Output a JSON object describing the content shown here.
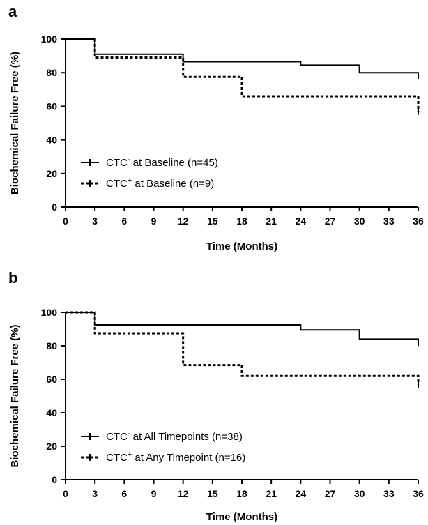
{
  "chart_data": [
    {
      "panel_label": "a",
      "type": "line",
      "step": true,
      "xlabel": "Time (Months)",
      "ylabel": "Biochemical Failure Free (%)",
      "xlim": [
        0,
        36
      ],
      "ylim": [
        0,
        100
      ],
      "xticks": [
        "0",
        "3",
        "6",
        "9",
        "12",
        "15",
        "18",
        "21",
        "24",
        "27",
        "30",
        "33",
        "36"
      ],
      "yticks": [
        "0",
        "20",
        "40",
        "60",
        "80",
        "100"
      ],
      "grid": false,
      "legend_position": "bottom-left",
      "series": [
        {
          "legend": {
            "base": "CTC",
            "sup": "-",
            "rest": " at Baseline (n=45)"
          },
          "style": "solid",
          "color": "#000000",
          "x": [
            0,
            3,
            12,
            24,
            30,
            36
          ],
          "y": [
            100,
            91,
            86.5,
            84.5,
            80,
            78
          ]
        },
        {
          "legend": {
            "base": "CTC",
            "sup": "+",
            "rest": " at Baseline (n=9)"
          },
          "style": "dotted",
          "color": "#000000",
          "x": [
            0,
            3,
            12,
            18,
            36
          ],
          "y": [
            100,
            89,
            77.5,
            66,
            57
          ]
        }
      ]
    },
    {
      "panel_label": "b",
      "type": "line",
      "step": true,
      "xlabel": "Time (Months)",
      "ylabel": "Biochemical Failure Free (%)",
      "xlim": [
        0,
        36
      ],
      "ylim": [
        0,
        100
      ],
      "xticks": [
        "0",
        "3",
        "6",
        "9",
        "12",
        "15",
        "18",
        "21",
        "24",
        "27",
        "30",
        "33",
        "36"
      ],
      "yticks": [
        "0",
        "20",
        "40",
        "60",
        "80",
        "100"
      ],
      "grid": false,
      "legend_position": "bottom-left",
      "series": [
        {
          "legend": {
            "base": "CTC",
            "sup": "-",
            "rest": " at All Timepoints (n=38)"
          },
          "style": "solid",
          "color": "#000000",
          "x": [
            0,
            3,
            24,
            30,
            36
          ],
          "y": [
            100,
            92.5,
            89.5,
            84,
            82
          ]
        },
        {
          "legend": {
            "base": "CTC",
            "sup": "+",
            "rest": " at Any Timepoint (n=16)"
          },
          "style": "dotted",
          "color": "#000000",
          "x": [
            0,
            3,
            12,
            18,
            36
          ],
          "y": [
            100,
            87.5,
            68.5,
            62,
            57
          ]
        }
      ]
    }
  ]
}
